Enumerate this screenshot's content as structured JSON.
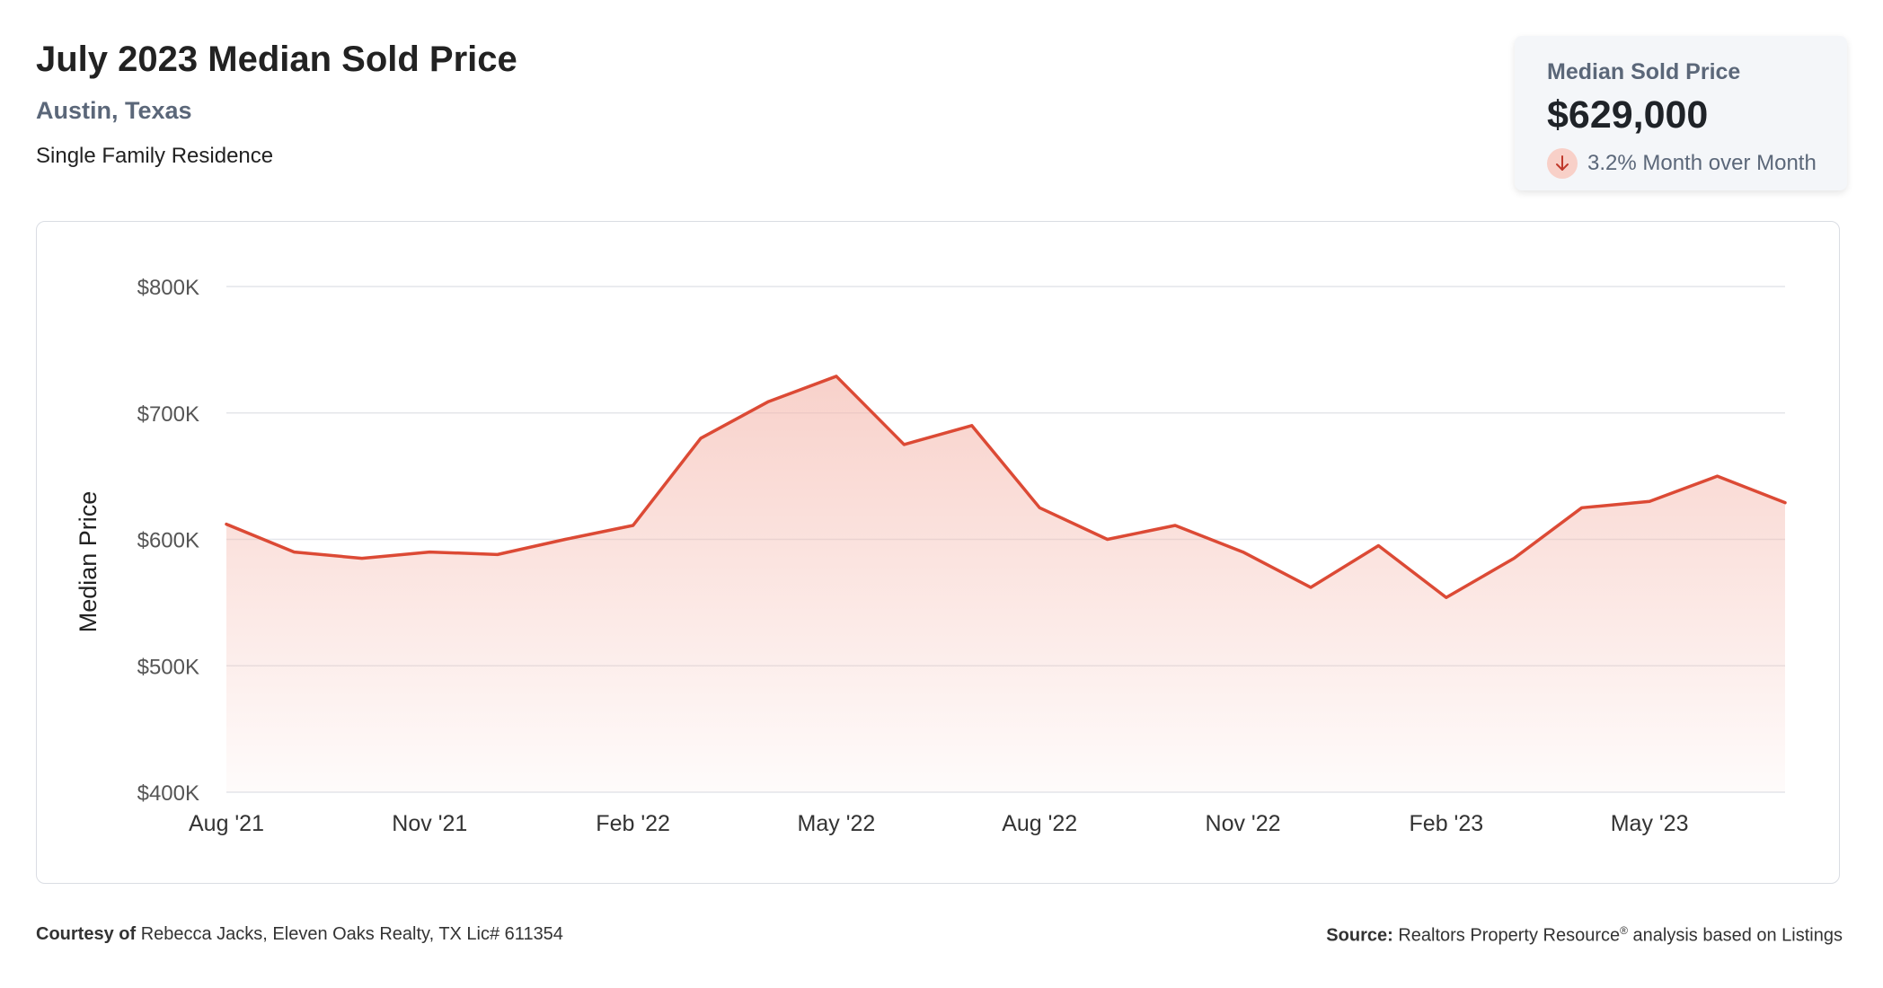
{
  "header": {
    "title": "July 2023 Median Sold Price",
    "location": "Austin, Texas",
    "property_type": "Single Family Residence"
  },
  "kpi": {
    "label": "Median Sold Price",
    "value": "$629,000",
    "change_text": "3.2% Month over Month",
    "direction": "down",
    "icon": "arrow-down-icon"
  },
  "footer": {
    "courtesy_label": "Courtesy of",
    "courtesy_text": "Rebecca Jacks, Eleven Oaks Realty, TX Lic# 611354",
    "source_label": "Source:",
    "source_text": "Realtors Property Resource",
    "source_mark": "®",
    "source_suffix": "analysis based on Listings"
  },
  "colors": {
    "line": "#dc4a35",
    "fill": "#f4b5aa",
    "grid": "#e4e6ea",
    "tick_text": "#555555",
    "down_badge": "#f8d0c8",
    "down_arrow": "#c0392b"
  },
  "chart_data": {
    "type": "area",
    "xlabel": "",
    "ylabel": "Median Price",
    "ylim": [
      400000,
      800000
    ],
    "y_ticks": [
      400000,
      500000,
      600000,
      700000,
      800000
    ],
    "y_tick_labels": [
      "$400K",
      "$500K",
      "$600K",
      "$700K",
      "$800K"
    ],
    "x_tick_labels": [
      "Aug '21",
      "Nov '21",
      "Feb '22",
      "May '22",
      "Aug '22",
      "Nov '22",
      "Feb '23",
      "May '23"
    ],
    "x_tick_indices": [
      0,
      3,
      6,
      9,
      12,
      15,
      18,
      21
    ],
    "grid": true,
    "x": [
      "2021-08",
      "2021-09",
      "2021-10",
      "2021-11",
      "2021-12",
      "2022-01",
      "2022-02",
      "2022-03",
      "2022-04",
      "2022-05",
      "2022-06",
      "2022-07",
      "2022-08",
      "2022-09",
      "2022-10",
      "2022-11",
      "2022-12",
      "2023-01",
      "2023-02",
      "2023-03",
      "2023-04",
      "2023-05",
      "2023-06",
      "2023-07"
    ],
    "series": [
      {
        "values": [
          612000,
          590000,
          585000,
          590000,
          588000,
          600000,
          611000,
          680000,
          709000,
          729000,
          675000,
          690000,
          625000,
          600000,
          611000,
          590000,
          562000,
          595000,
          554000,
          585000,
          625000,
          630000,
          650000,
          629000
        ]
      }
    ]
  }
}
